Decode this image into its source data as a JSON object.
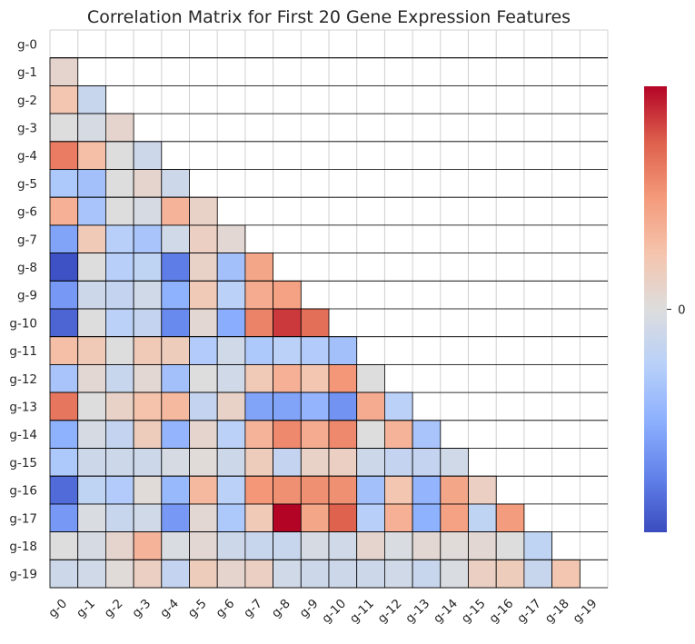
{
  "chart_data": {
    "type": "heatmap",
    "title": "Correlation Matrix for First 20 Gene Expression Features",
    "labels": [
      "g-0",
      "g-1",
      "g-2",
      "g-3",
      "g-4",
      "g-5",
      "g-6",
      "g-7",
      "g-8",
      "g-9",
      "g-10",
      "g-11",
      "g-12",
      "g-13",
      "g-14",
      "g-15",
      "g-16",
      "g-17",
      "g-18",
      "g-19"
    ],
    "mask": "upper-triangle-including-diagonal",
    "colormap": "coolwarm",
    "vmin": -0.35,
    "vmax": 0.35,
    "colorbar_ticks": [
      0
    ],
    "colorbar_tick_labels": [
      "0"
    ],
    "matrix": [
      [
        null,
        null,
        null,
        null,
        null,
        null,
        null,
        null,
        null,
        null,
        null,
        null,
        null,
        null,
        null,
        null,
        null,
        null,
        null,
        null
      ],
      [
        0.03,
        null,
        null,
        null,
        null,
        null,
        null,
        null,
        null,
        null,
        null,
        null,
        null,
        null,
        null,
        null,
        null,
        null,
        null,
        null
      ],
      [
        0.08,
        -0.05,
        null,
        null,
        null,
        null,
        null,
        null,
        null,
        null,
        null,
        null,
        null,
        null,
        null,
        null,
        null,
        null,
        null,
        null
      ],
      [
        0.0,
        -0.02,
        0.03,
        null,
        null,
        null,
        null,
        null,
        null,
        null,
        null,
        null,
        null,
        null,
        null,
        null,
        null,
        null,
        null,
        null
      ],
      [
        0.22,
        0.1,
        0.0,
        -0.04,
        null,
        null,
        null,
        null,
        null,
        null,
        null,
        null,
        null,
        null,
        null,
        null,
        null,
        null,
        null,
        null
      ],
      [
        -0.11,
        -0.13,
        0.0,
        0.03,
        -0.04,
        null,
        null,
        null,
        null,
        null,
        null,
        null,
        null,
        null,
        null,
        null,
        null,
        null,
        null,
        null
      ],
      [
        0.13,
        -0.12,
        0.0,
        -0.02,
        0.12,
        0.04,
        null,
        null,
        null,
        null,
        null,
        null,
        null,
        null,
        null,
        null,
        null,
        null,
        null,
        null
      ],
      [
        -0.2,
        0.07,
        -0.09,
        -0.12,
        -0.03,
        0.05,
        0.02,
        null,
        null,
        null,
        null,
        null,
        null,
        null,
        null,
        null,
        null,
        null,
        null,
        null
      ],
      [
        -0.34,
        0.0,
        -0.09,
        -0.07,
        -0.27,
        0.04,
        -0.13,
        0.15,
        null,
        null,
        null,
        null,
        null,
        null,
        null,
        null,
        null,
        null,
        null,
        null
      ],
      [
        -0.22,
        -0.04,
        -0.06,
        -0.03,
        -0.17,
        0.07,
        -0.08,
        0.14,
        0.16,
        null,
        null,
        null,
        null,
        null,
        null,
        null,
        null,
        null,
        null,
        null
      ],
      [
        -0.31,
        0.0,
        -0.08,
        -0.06,
        -0.25,
        0.02,
        -0.18,
        0.21,
        0.3,
        0.24,
        null,
        null,
        null,
        null,
        null,
        null,
        null,
        null,
        null,
        null
      ],
      [
        0.1,
        0.07,
        0.0,
        0.07,
        0.06,
        -0.1,
        -0.03,
        -0.11,
        -0.08,
        -0.1,
        -0.13,
        null,
        null,
        null,
        null,
        null,
        null,
        null,
        null,
        null
      ],
      [
        -0.12,
        0.02,
        -0.05,
        0.02,
        -0.13,
        0.0,
        -0.03,
        0.07,
        0.13,
        0.08,
        0.18,
        0.0,
        null,
        null,
        null,
        null,
        null,
        null,
        null,
        null
      ],
      [
        0.23,
        0.0,
        0.04,
        0.09,
        0.11,
        -0.06,
        0.04,
        -0.2,
        -0.2,
        -0.16,
        -0.23,
        0.14,
        -0.08,
        null,
        null,
        null,
        null,
        null,
        null,
        null
      ],
      [
        -0.17,
        -0.02,
        -0.06,
        0.06,
        -0.16,
        0.03,
        -0.08,
        0.12,
        0.2,
        0.14,
        0.2,
        0.0,
        0.12,
        -0.12,
        null,
        null,
        null,
        null,
        null,
        null
      ],
      [
        -0.11,
        -0.04,
        -0.04,
        -0.04,
        -0.02,
        0.01,
        -0.04,
        0.06,
        -0.06,
        0.04,
        0.05,
        -0.04,
        -0.06,
        -0.06,
        -0.03,
        null,
        null,
        null,
        null,
        null
      ],
      [
        -0.3,
        -0.07,
        -0.1,
        0.01,
        -0.15,
        0.11,
        -0.08,
        0.18,
        0.19,
        0.19,
        0.19,
        -0.13,
        0.08,
        -0.16,
        0.15,
        0.05,
        null,
        null,
        null,
        null
      ],
      [
        -0.22,
        -0.01,
        -0.05,
        -0.03,
        -0.22,
        0.02,
        -0.11,
        0.07,
        0.35,
        0.15,
        0.26,
        -0.09,
        0.13,
        -0.17,
        0.16,
        -0.07,
        0.17,
        null,
        null,
        null
      ],
      [
        0.0,
        -0.02,
        0.03,
        0.12,
        -0.01,
        0.02,
        -0.04,
        -0.05,
        -0.05,
        -0.02,
        -0.03,
        0.03,
        -0.01,
        0.02,
        0.01,
        0.02,
        0.0,
        -0.07,
        null,
        null
      ],
      [
        -0.04,
        -0.03,
        0.01,
        0.05,
        -0.06,
        0.06,
        0.03,
        0.05,
        -0.03,
        -0.04,
        -0.04,
        -0.04,
        -0.03,
        -0.05,
        -0.01,
        0.05,
        0.06,
        -0.05,
        0.08,
        null
      ]
    ]
  }
}
